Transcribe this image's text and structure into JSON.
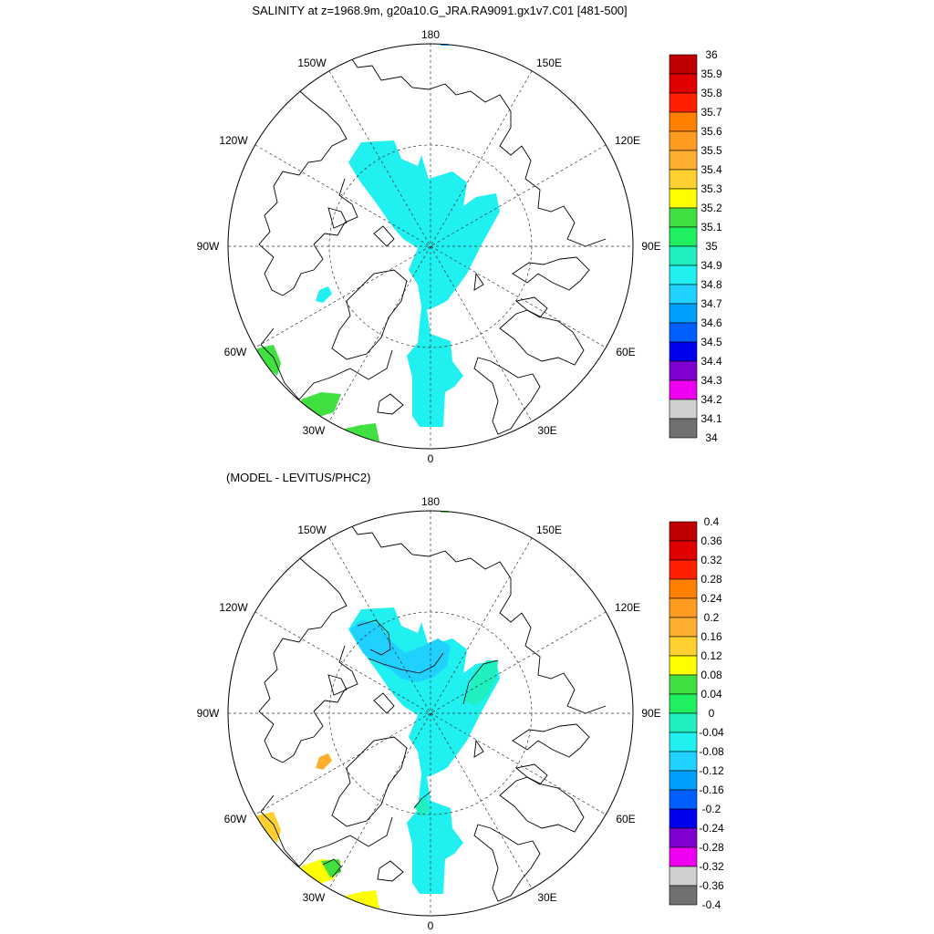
{
  "panel1": {
    "title": "SALINITY at z=1968.9m, g20a10.G_JRA.RA9091.gx1v7.C01 [481-500]",
    "lon_labels": [
      "180",
      "150E",
      "120E",
      "90E",
      "60E",
      "30E",
      "0",
      "30W",
      "60W",
      "90W",
      "120W",
      "150W"
    ],
    "colorbar": {
      "levels": [
        "36",
        "35.9",
        "35.8",
        "35.7",
        "35.6",
        "35.5",
        "35.4",
        "35.3",
        "35.2",
        "35.1",
        "35",
        "34.9",
        "34.8",
        "34.7",
        "34.6",
        "34.5",
        "34.4",
        "34.3",
        "34.2",
        "34.1",
        "34"
      ],
      "colors": [
        "#c00000",
        "#e00000",
        "#ff2000",
        "#ff8000",
        "#ff9c20",
        "#ffaf30",
        "#ffd030",
        "#ffff00",
        "#40e040",
        "#20f060",
        "#20f0c0",
        "#20f0f0",
        "#20d0ff",
        "#00a0ff",
        "#0060ff",
        "#0000f0",
        "#8000d0",
        "#f000f0",
        "#d0d0d0",
        "#707070"
      ]
    }
  },
  "panel2": {
    "title": "(MODEL - LEVITUS/PHC2)",
    "lon_labels": [
      "180",
      "150E",
      "120E",
      "90E",
      "60E",
      "30E",
      "0",
      "30W",
      "60W",
      "90W",
      "120W",
      "150W"
    ],
    "colorbar": {
      "levels": [
        "0.4",
        "0.36",
        "0.32",
        "0.28",
        "0.24",
        "0.2",
        "0.16",
        "0.12",
        "0.08",
        "0.04",
        "0",
        "-0.04",
        "-0.08",
        "-0.12",
        "-0.16",
        "-0.2",
        "-0.24",
        "-0.28",
        "-0.32",
        "-0.36",
        "-0.4"
      ],
      "colors": [
        "#c00000",
        "#e00000",
        "#ff2000",
        "#ff8000",
        "#ff9c20",
        "#ffaf30",
        "#ffd030",
        "#ffff00",
        "#40e040",
        "#20f060",
        "#20f0c0",
        "#20f0f0",
        "#20d0ff",
        "#00a0ff",
        "#0060ff",
        "#0000f0",
        "#8000d0",
        "#f000f0",
        "#d0d0d0",
        "#707070"
      ]
    }
  },
  "fields": {
    "panel1": {
      "central_basin": "#20f0f0",
      "north_atlantic_patches": "#40e040",
      "baffin_patch": "#20f0f0",
      "pacific_patch": "#00a0ff"
    },
    "panel2": {
      "central_basin": "#20f0f0",
      "canada_basin": "#20d0ff",
      "eurasian_patch": "#20f0c0",
      "labrador_patch": "#ffd030",
      "irminger_patch": "#ffff00",
      "green_patch": "#40e040",
      "baffin_patch": "#ffaf30",
      "pacific_patch": "#40e040"
    }
  }
}
